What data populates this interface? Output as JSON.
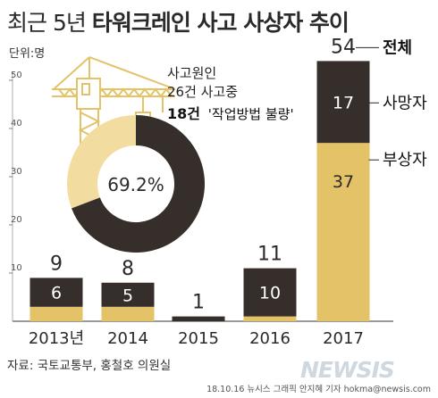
{
  "title": {
    "light": "최근 5년",
    "bold": "타워크레인 사고 사상자 추이"
  },
  "unit": "단위:명",
  "source": "자료: 국토교통부, 홍철호 의원실",
  "credit": "18.10.16 뉴시스 그래픽 안지혜 기자 hokma@newsis.com",
  "watermark": "NEWSIS",
  "colors": {
    "dark": "#352e2b",
    "gold": "#e4c267",
    "light_gold": "#f2dca0",
    "axis": "#333333"
  },
  "chart_data": {
    "type": "bar",
    "stacked": true,
    "categories": [
      "2013년",
      "2014",
      "2015",
      "2016",
      "2017"
    ],
    "series": [
      {
        "name": "사망자",
        "values": [
          6,
          5,
          1,
          10,
          17
        ]
      },
      {
        "name": "부상자",
        "values": [
          3,
          3,
          0,
          1,
          37
        ]
      }
    ],
    "totals": [
      9,
      8,
      1,
      11,
      54
    ],
    "total_label": "전체",
    "yticks": [
      10,
      20,
      30,
      40,
      50
    ],
    "ylim": [
      0,
      58
    ]
  },
  "annotation": {
    "line1": "사고원인",
    "line2": "26건 사고중",
    "line3_bold": "18건",
    "line3_rest": "'작업방법 불량'"
  },
  "donut": {
    "percent_label": "69.2%",
    "value": 0.692
  }
}
